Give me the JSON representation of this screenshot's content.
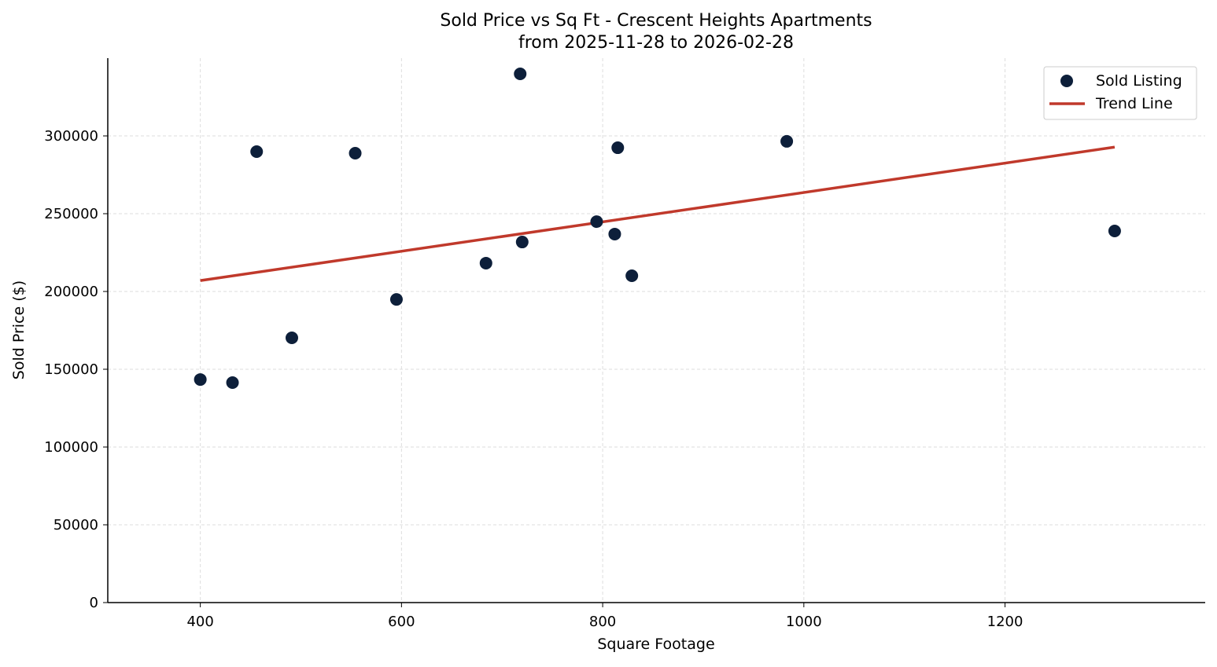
{
  "chart_data": {
    "type": "scatter",
    "title": "Sold Price vs Sq Ft - Crescent Heights Apartments",
    "subtitle": "from 2025-11-28 to 2026-02-28",
    "xlabel": "Square Footage",
    "ylabel": "Sold Price ($)",
    "xlim": [
      308,
      1399
    ],
    "ylim": [
      0,
      350000
    ],
    "xticks": [
      400,
      600,
      800,
      1000,
      1200
    ],
    "yticks": [
      0,
      50000,
      100000,
      150000,
      200000,
      250000,
      300000
    ],
    "grid": true,
    "legend_position": "top-right",
    "series": [
      {
        "name": "Sold Listing",
        "kind": "scatter",
        "color": "#0d1f3a",
        "points": [
          [
            400,
            143400
          ],
          [
            432,
            141400
          ],
          [
            456,
            289900
          ],
          [
            491,
            170200
          ],
          [
            554,
            288900
          ],
          [
            595,
            194900
          ],
          [
            684,
            218200
          ],
          [
            718,
            339900
          ],
          [
            720,
            231800
          ],
          [
            794,
            244900
          ],
          [
            812,
            236900
          ],
          [
            815,
            292400
          ],
          [
            829,
            210100
          ],
          [
            983,
            296500
          ],
          [
            1309,
            238900
          ]
        ]
      },
      {
        "name": "Trend Line",
        "kind": "line",
        "color": "#c0392b",
        "points": [
          [
            400,
            207000
          ],
          [
            1309,
            292800
          ]
        ]
      }
    ]
  }
}
